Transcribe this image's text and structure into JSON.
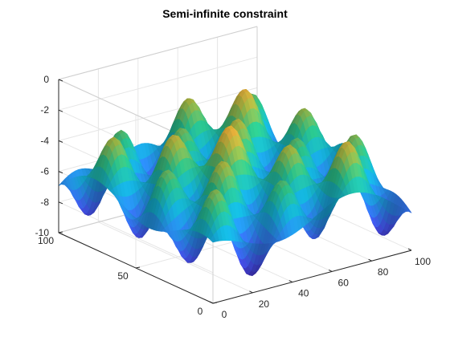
{
  "chart_data": {
    "type": "surface",
    "title": "Semi-infinite constraint",
    "xlabel": "",
    "ylabel": "",
    "zlabel": "",
    "x_range": [
      0,
      100
    ],
    "y_range": [
      0,
      100
    ],
    "z_range": [
      -10,
      0
    ],
    "x_ticks": [
      "0",
      "20",
      "40",
      "60",
      "80",
      "100"
    ],
    "y_ticks": [
      "0",
      "50",
      "100"
    ],
    "z_ticks": [
      "0",
      "-2",
      "-4",
      "-6",
      "-8",
      "-10"
    ],
    "grid": true,
    "colormap": "parula",
    "view": "3-D perspective, default azimuth/elevation",
    "surface_description": "oscillating sinusoidal surface with a grid of peaks near -1 and valleys down to about -9.5",
    "colors": {
      "low": "#3e26a8",
      "mid": "#13beb8",
      "high": "#f9fb0e"
    }
  }
}
